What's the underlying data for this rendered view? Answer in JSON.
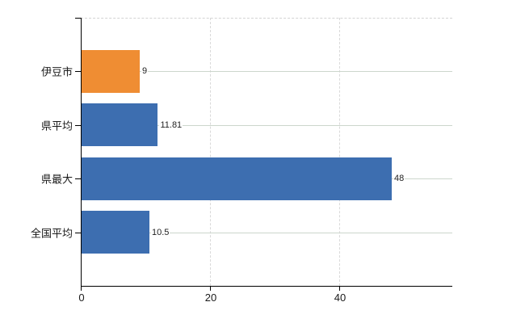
{
  "chart_data": {
    "type": "bar",
    "orientation": "horizontal",
    "title": "",
    "categories": [
      "伊豆市",
      "県平均",
      "県最大",
      "全国平均"
    ],
    "values": [
      9,
      11.81,
      48,
      10.5
    ],
    "value_labels": [
      "9",
      "11.81",
      "48",
      "10.5"
    ],
    "bar_colors": [
      "#ef8d33",
      "#3d6eb0",
      "#3d6eb0",
      "#3d6eb0"
    ],
    "x_ticks": [
      0,
      20,
      40
    ],
    "x_tick_labels": [
      "0",
      "20",
      "40"
    ],
    "xlim": [
      0,
      57.5
    ],
    "grid": true,
    "legend": "none",
    "colors": {
      "highlight_bar": "#ef8d33",
      "default_bar": "#3d6eb0",
      "axis": "#000000",
      "horizontal_grid": "#ccd6cc",
      "vertical_grid_dashed": "#d9d9d9",
      "top_border_dashed": "#d4d4d4",
      "text": "#1a1a1a",
      "background": "#ffffff"
    }
  }
}
